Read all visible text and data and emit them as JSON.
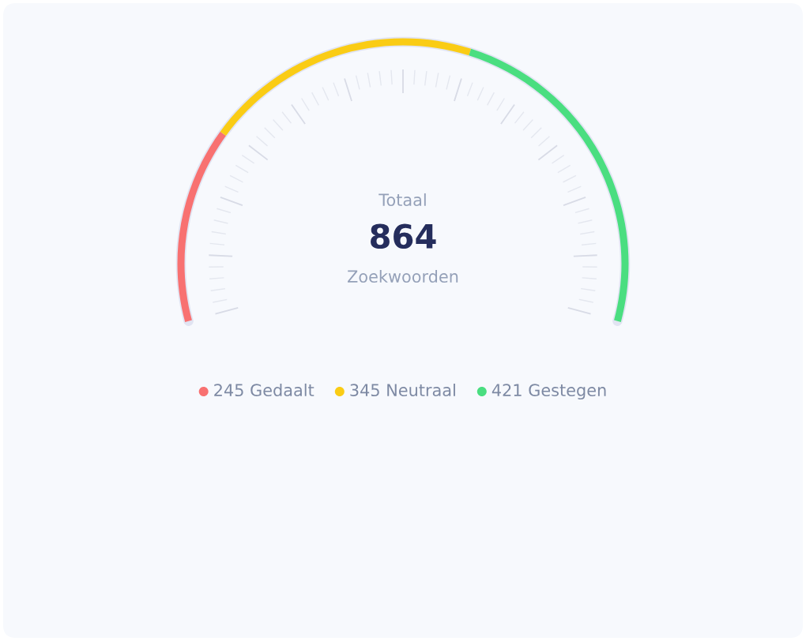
{
  "chart_data": {
    "type": "donut",
    "categories": [
      "245 Gedaalt",
      "345 Neutraal",
      "421 Gestegen"
    ],
    "values": [
      245,
      345,
      421
    ],
    "colors": [
      "#f87171",
      "#facc15",
      "#4ade80"
    ],
    "annotations": [
      "Totaal",
      "864",
      "Zoekwoorden"
    ],
    "legend": "bottom"
  }
}
